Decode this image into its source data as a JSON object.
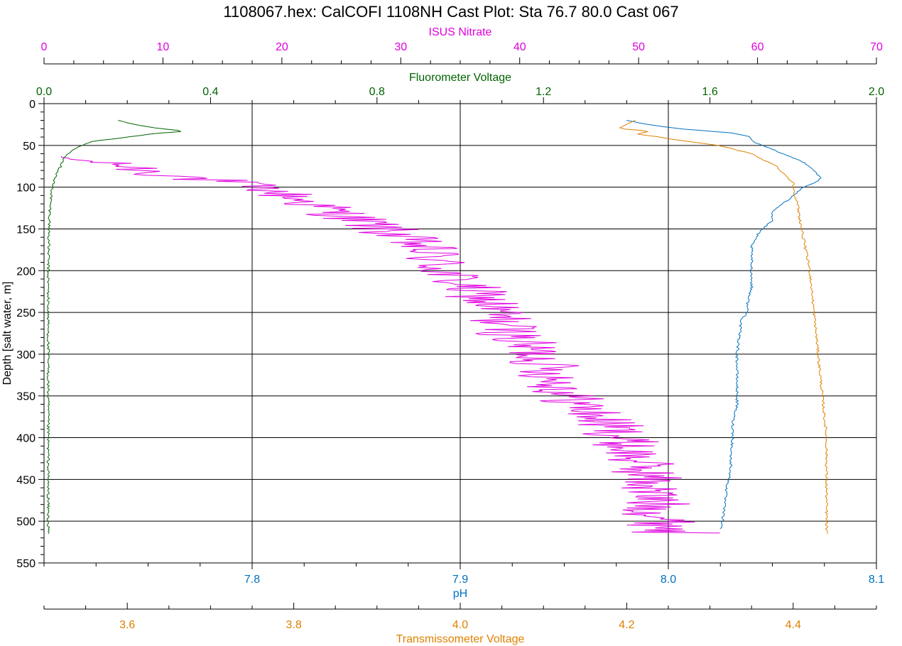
{
  "title": "1108067.hex: CalCOFI 1108NH Cast Plot: Sta 76.7 80.0 Cast 067",
  "colors": {
    "nitrate": "#e000e0",
    "fluorometer": "#006400",
    "ph": "#0070c0",
    "transmissometer": "#e08000",
    "axis": "#000000"
  },
  "chart_data": {
    "type": "line",
    "title": "1108067.hex: CalCOFI 1108NH Cast Plot: Sta 76.7 80.0 Cast 067",
    "y_axis": {
      "label": "Depth [salt water, m]",
      "range": [
        0,
        550
      ],
      "inverted": true,
      "ticks": [
        0,
        50,
        100,
        150,
        200,
        250,
        300,
        350,
        400,
        450,
        500,
        550
      ],
      "tick_labels": [
        "0",
        "50",
        "100",
        "150",
        "200",
        "250",
        "300",
        "350",
        "400",
        "450",
        "500",
        "550"
      ]
    },
    "x_axes": [
      {
        "key": "nitrate",
        "label": "ISUS Nitrate",
        "position": "top",
        "range": [
          0,
          70
        ],
        "ticks": [
          0,
          10,
          20,
          30,
          40,
          50,
          60,
          70
        ],
        "tick_labels": [
          "0",
          "10",
          "20",
          "30",
          "40",
          "50",
          "60",
          "70"
        ]
      },
      {
        "key": "fluorometer",
        "label": "Fluorometer Voltage",
        "position": "top",
        "range": [
          0,
          2
        ],
        "ticks": [
          0,
          0.4,
          0.8,
          1.2,
          1.6,
          2.0
        ],
        "tick_labels": [
          "0.0",
          "0.4",
          "0.8",
          "1.2",
          "1.6",
          "2.0"
        ]
      },
      {
        "key": "ph",
        "label": "pH",
        "position": "bottom",
        "range": [
          7.7,
          8.1
        ],
        "ticks": [
          7.8,
          7.9,
          8.0,
          8.1
        ],
        "tick_labels": [
          "7.8",
          "7.9",
          "8.0",
          "8.1"
        ]
      },
      {
        "key": "transmissometer",
        "label": "Transmissometer Voltage",
        "position": "bottom",
        "range": [
          3.5,
          4.5
        ],
        "ticks": [
          3.6,
          3.8,
          4.0,
          4.2,
          4.4
        ],
        "tick_labels": [
          "3.6",
          "3.8",
          "4.0",
          "4.2",
          "4.4"
        ]
      }
    ],
    "grid": {
      "horizontal": true,
      "vertical": true
    },
    "series": [
      {
        "axis": "nitrate",
        "depth": [
          63,
          68,
          72,
          78,
          84,
          90,
          96,
          100,
          110,
          120,
          130,
          140,
          150,
          160,
          170,
          180,
          190,
          200,
          210,
          220,
          230,
          240,
          250,
          260,
          270,
          280,
          290,
          300,
          310,
          320,
          330,
          340,
          350,
          360,
          370,
          380,
          390,
          400,
          410,
          420,
          430,
          440,
          450,
          460,
          470,
          480,
          490,
          500,
          510,
          515
        ],
        "values": [
          1,
          3,
          6,
          8,
          10,
          13,
          16,
          18,
          20.5,
          22.5,
          24.5,
          26.5,
          28.5,
          30,
          31.5,
          32.5,
          33,
          33.5,
          34.5,
          35.5,
          36.5,
          37.5,
          38,
          38.5,
          39,
          39.5,
          40.5,
          41.5,
          42,
          42.5,
          43,
          43.5,
          44,
          45,
          46,
          47,
          48,
          48.5,
          49,
          49.5,
          50,
          50.5,
          51,
          51,
          51,
          51.5,
          51.5,
          52,
          53,
          53
        ],
        "spread": [
          0.5,
          1.2,
          2,
          3,
          3,
          3.5,
          3.5,
          2,
          3,
          3,
          3,
          3,
          3,
          3,
          3,
          3,
          3,
          3,
          3,
          3,
          3,
          3,
          3,
          3,
          3,
          3,
          3,
          3,
          3,
          3,
          3,
          3,
          3,
          3,
          3,
          3,
          3,
          3,
          3,
          3,
          3,
          3,
          3,
          3,
          3,
          3,
          3,
          3,
          4,
          4
        ]
      },
      {
        "axis": "fluorometer",
        "depth": [
          20,
          25,
          30,
          33,
          36,
          40,
          45,
          50,
          55,
          60,
          65,
          70,
          75,
          80,
          85,
          90,
          95,
          100,
          120,
          150,
          200,
          300,
          400,
          515
        ],
        "values": [
          0.18,
          0.22,
          0.28,
          0.34,
          0.26,
          0.2,
          0.12,
          0.09,
          0.07,
          0.06,
          0.05,
          0.045,
          0.04,
          0.035,
          0.03,
          0.025,
          0.022,
          0.02,
          0.015,
          0.012,
          0.01,
          0.01,
          0.01,
          0.01
        ]
      },
      {
        "axis": "ph",
        "depth": [
          20,
          25,
          30,
          35,
          40,
          45,
          50,
          55,
          60,
          65,
          70,
          75,
          80,
          85,
          90,
          95,
          100,
          110,
          120,
          130,
          140,
          150,
          160,
          170,
          180,
          200,
          220,
          240,
          250,
          260,
          280,
          300,
          320,
          340,
          360,
          380,
          400,
          420,
          440,
          460,
          480,
          500,
          510
        ],
        "values": [
          7.98,
          7.99,
          8.005,
          8.03,
          8.04,
          8.04,
          8.045,
          8.05,
          8.055,
          8.06,
          8.065,
          8.068,
          8.07,
          8.072,
          8.073,
          8.07,
          8.065,
          8.06,
          8.055,
          8.05,
          8.05,
          8.045,
          8.042,
          8.04,
          8.04,
          8.04,
          8.04,
          8.038,
          8.038,
          8.035,
          8.034,
          8.033,
          8.033,
          8.033,
          8.033,
          8.031,
          8.031,
          8.03,
          8.03,
          8.028,
          8.027,
          8.026,
          8.025
        ]
      },
      {
        "axis": "transmissometer",
        "depth": [
          20,
          25,
          30,
          33,
          36,
          40,
          45,
          50,
          55,
          60,
          65,
          70,
          75,
          80,
          85,
          90,
          95,
          100,
          120,
          150,
          200,
          250,
          300,
          350,
          400,
          450,
          500,
          515
        ],
        "values": [
          4.21,
          4.2,
          4.19,
          4.23,
          4.21,
          4.24,
          4.27,
          4.31,
          4.33,
          4.35,
          4.36,
          4.37,
          4.38,
          4.385,
          4.39,
          4.395,
          4.4,
          4.4,
          4.405,
          4.41,
          4.42,
          4.425,
          4.43,
          4.435,
          4.44,
          4.44,
          4.44,
          4.44
        ]
      }
    ]
  }
}
